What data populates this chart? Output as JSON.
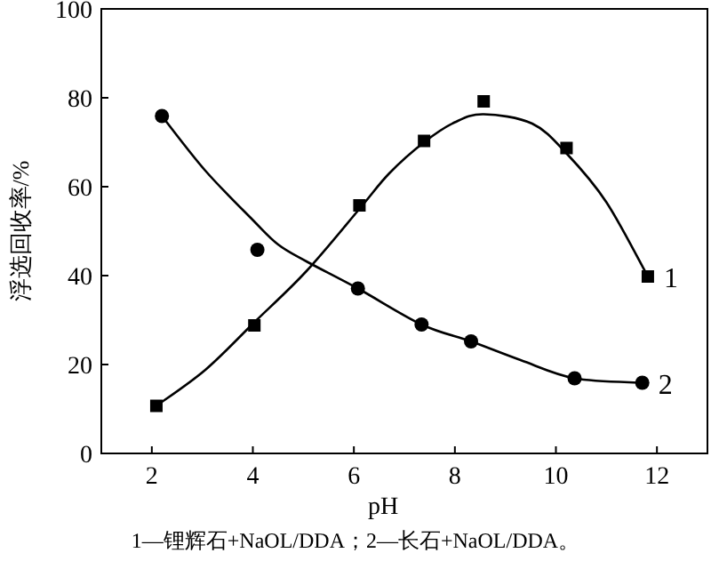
{
  "chart_data": {
    "type": "scatter",
    "xlabel": "pH",
    "ylabel": "浮选回收率/%",
    "xlim": [
      1,
      13
    ],
    "ylim": [
      0,
      100
    ],
    "xticks": [
      2,
      4,
      6,
      8,
      10,
      12
    ],
    "yticks": [
      0,
      20,
      40,
      60,
      80,
      100
    ],
    "grid": false,
    "annotations": [
      "1—锂辉石+NaOL/DDA；2—长石+NaOL/DDA。"
    ],
    "series": [
      {
        "name": "1",
        "marker": "square",
        "color": "#000000",
        "x": [
          2.09,
          4.03,
          6.11,
          7.39,
          8.57,
          10.21,
          11.82
        ],
        "values": [
          10.7,
          28.8,
          55.8,
          70.3,
          79.2,
          68.7,
          39.8
        ]
      },
      {
        "name": "2",
        "marker": "circle",
        "color": "#000000",
        "x": [
          2.2,
          4.09,
          6.08,
          7.34,
          8.32,
          10.37,
          11.71
        ],
        "values": [
          75.9,
          45.8,
          37.1,
          29.0,
          25.2,
          16.9,
          15.9
        ]
      },
      {
        "type": "line",
        "marker": "none",
        "color": "#000000",
        "x": [
          2.09,
          3.06,
          4.03,
          5.06,
          6.11,
          6.7,
          7.39,
          8.0,
          8.57,
          9.53,
          10.21,
          11.0,
          11.82
        ],
        "values": [
          10.7,
          18.8,
          29.5,
          41,
          55,
          63,
          70,
          74.5,
          76.3,
          74.2,
          67.5,
          56.5,
          39.8
        ]
      },
      {
        "type": "line",
        "marker": "none",
        "color": "#000000",
        "x": [
          2.2,
          3.06,
          4.0,
          4.5,
          5.06,
          6.08,
          7.34,
          8.32,
          9.3,
          10.37,
          11.71
        ],
        "values": [
          75.9,
          63.6,
          52.5,
          47,
          43.2,
          37.1,
          29.0,
          25.2,
          21,
          16.9,
          15.9
        ]
      }
    ]
  }
}
